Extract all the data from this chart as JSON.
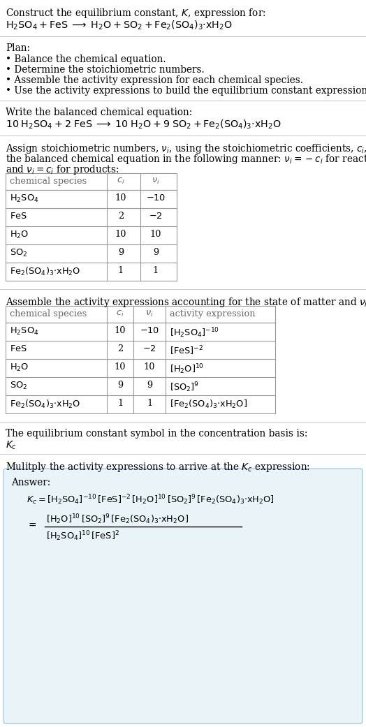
{
  "bg_color": "#ffffff",
  "text_color": "#000000",
  "gray_color": "#666666",
  "line_color": "#cccccc",
  "table_line_color": "#999999",
  "answer_box_color": "#e8f4f8",
  "answer_box_edge": "#aaccdd",
  "title_line1": "Construct the equilibrium constant, $K$, expression for:",
  "title_chem": "$\\mathrm{H_2SO_4 + FeS \\;\\longrightarrow\\; H_2O + SO_2 + Fe_2(SO_4)_3{\\cdot}xH_2O}$",
  "plan_header": "Plan:",
  "plan_items": [
    "Balance the chemical equation.",
    "Determine the stoichiometric numbers.",
    "Assemble the activity expression for each chemical species.",
    "Use the activity expressions to build the equilibrium constant expression."
  ],
  "balanced_header": "Write the balanced chemical equation:",
  "balanced_eq": "$\\mathrm{10\\; H_2SO_4 + 2\\; FeS \\;\\longrightarrow\\; 10\\; H_2O + 9\\; SO_2 + Fe_2(SO_4)_3{\\cdot}xH_2O}$",
  "stoich_text1": "Assign stoichiometric numbers, $\\nu_i$, using the stoichiometric coefficients, $c_i$, from",
  "stoich_text2": "the balanced chemical equation in the following manner: $\\nu_i = -c_i$ for reactants",
  "stoich_text3": "and $\\nu_i = c_i$ for products:",
  "table1_col_headers": [
    "chemical species",
    "$c_i$",
    "$\\nu_i$"
  ],
  "table1_rows": [
    [
      "$\\mathrm{H_2SO_4}$",
      "10",
      "$-10$"
    ],
    [
      "$\\mathrm{FeS}$",
      "2",
      "$-2$"
    ],
    [
      "$\\mathrm{H_2O}$",
      "10",
      "10"
    ],
    [
      "$\\mathrm{SO_2}$",
      "9",
      "9"
    ],
    [
      "$\\mathrm{Fe_2(SO_4)_3{\\cdot}xH_2O}$",
      "1",
      "1"
    ]
  ],
  "activity_header": "Assemble the activity expressions accounting for the state of matter and $\\nu_i$:",
  "table2_col_headers": [
    "chemical species",
    "$c_i$",
    "$\\nu_i$",
    "activity expression"
  ],
  "table2_rows": [
    [
      "$\\mathrm{H_2SO_4}$",
      "10",
      "$-10$",
      "$[\\mathrm{H_2SO_4}]^{-10}$"
    ],
    [
      "$\\mathrm{FeS}$",
      "2",
      "$-2$",
      "$[\\mathrm{FeS}]^{-2}$"
    ],
    [
      "$\\mathrm{H_2O}$",
      "10",
      "10",
      "$[\\mathrm{H_2O}]^{10}$"
    ],
    [
      "$\\mathrm{SO_2}$",
      "9",
      "9",
      "$[\\mathrm{SO_2}]^{9}$"
    ],
    [
      "$\\mathrm{Fe_2(SO_4)_3{\\cdot}xH_2O}$",
      "1",
      "1",
      "$[\\mathrm{Fe_2(SO_4)_3{\\cdot}xH_2O}]$"
    ]
  ],
  "kc_header": "The equilibrium constant symbol in the concentration basis is:",
  "kc_symbol": "$K_c$",
  "multiply_header": "Mulitply the activity expressions to arrive at the $K_c$ expression:",
  "answer_label": "Answer:",
  "answer_eq": "$K_c = [\\mathrm{H_2SO_4}]^{-10}\\,[\\mathrm{FeS}]^{-2}\\,[\\mathrm{H_2O}]^{10}\\,[\\mathrm{SO_2}]^{9}\\,[\\mathrm{Fe_2(SO_4)_3{\\cdot}xH_2O}]$",
  "answer_frac_num": "$[\\mathrm{H_2O}]^{10}\\,[\\mathrm{SO_2}]^{9}\\,[\\mathrm{Fe_2(SO_4)_3{\\cdot}xH_2O}]$",
  "answer_frac_den": "$[\\mathrm{H_2SO_4}]^{10}\\,[\\mathrm{FeS}]^{2}$",
  "answer_eq_prefix": "$=$"
}
